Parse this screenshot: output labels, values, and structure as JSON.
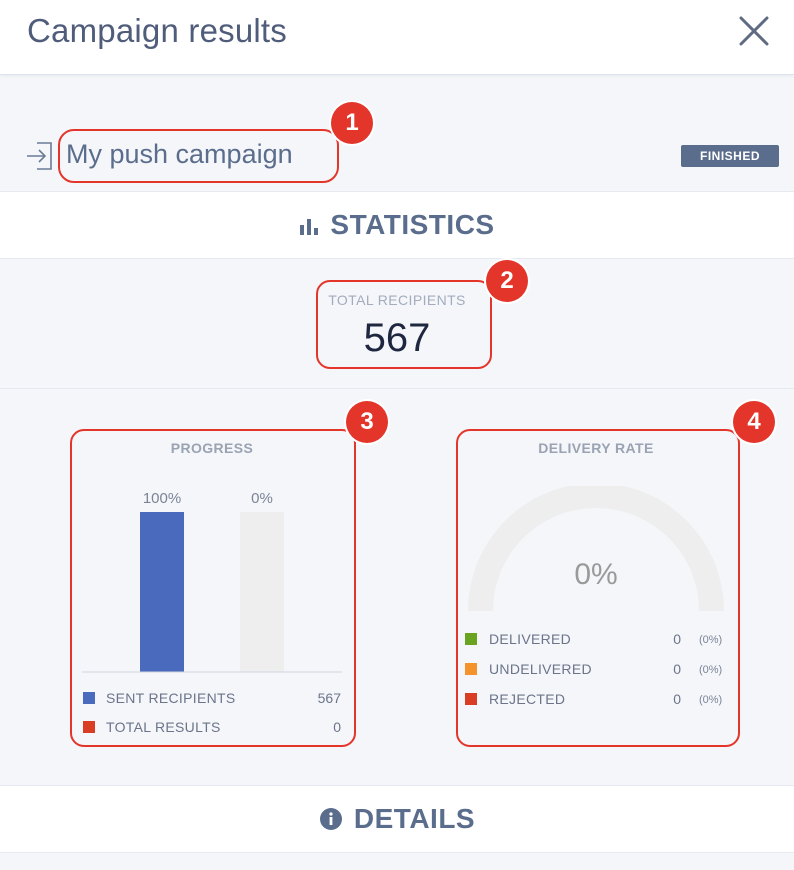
{
  "window": {
    "title": "Campaign results"
  },
  "campaign": {
    "name": "My push campaign",
    "status": "FINISHED"
  },
  "sections": {
    "statistics": "STATISTICS",
    "details": "DETAILS"
  },
  "total": {
    "label": "TOTAL RECIPIENTS",
    "value": "567"
  },
  "progress": {
    "title": "PROGRESS",
    "bar_labels": [
      "100%",
      "0%"
    ],
    "legend": [
      {
        "label": "SENT RECIPIENTS",
        "count": "567",
        "color": "#4a6bbd"
      },
      {
        "label": "TOTAL RESULTS",
        "count": "0",
        "color": "#d93d24"
      }
    ]
  },
  "delivery": {
    "title": "DELIVERY RATE",
    "center_label": "0%",
    "legend": [
      {
        "label": "DELIVERED",
        "count": "0",
        "pct": "(0%)",
        "color": "#6aa31f"
      },
      {
        "label": "UNDELIVERED",
        "count": "0",
        "pct": "(0%)",
        "color": "#f4922c"
      },
      {
        "label": "REJECTED",
        "count": "0",
        "pct": "(0%)",
        "color": "#d93d24"
      }
    ]
  },
  "annotations": [
    "1",
    "2",
    "3",
    "4"
  ],
  "chart_data": [
    {
      "type": "bar",
      "title": "PROGRESS",
      "categories": [
        "SENT RECIPIENTS",
        "TOTAL RESULTS"
      ],
      "values": [
        100,
        0
      ],
      "data_labels": [
        "100%",
        "0%"
      ],
      "ylim": [
        0,
        100
      ],
      "colors": [
        "#4a6bbd",
        "#eeeeee"
      ],
      "grid": false,
      "legend_placement": "bottom"
    },
    {
      "type": "pie",
      "title": "DELIVERY RATE",
      "style": "half-donut gauge",
      "categories": [
        "DELIVERED",
        "UNDELIVERED",
        "REJECTED"
      ],
      "values": [
        0,
        0,
        0
      ],
      "percentages": [
        0,
        0,
        0
      ],
      "center_label": "0%",
      "colors": [
        "#6aa31f",
        "#f4922c",
        "#d93d24"
      ],
      "legend_placement": "bottom"
    }
  ]
}
